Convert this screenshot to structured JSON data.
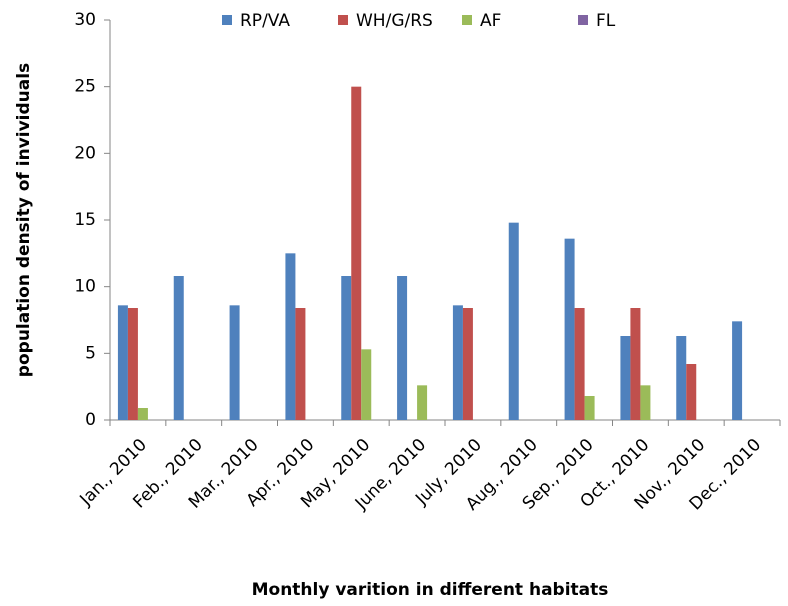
{
  "chart_data": {
    "type": "bar",
    "x_label": "Monthly varition in different habitats",
    "y_label": "population density of invividuals",
    "categories": [
      "Jan., 2010",
      "Feb., 2010",
      "Mar., 2010",
      "Apr., 2010",
      "May, 2010",
      "June, 2010",
      "July, 2010",
      "Aug., 2010",
      "Sep., 2010",
      "Oct., 2010",
      "Nov., 2010",
      "Dec., 2010"
    ],
    "series": [
      {
        "name": "RP/VA",
        "color": "#4f81bd",
        "values": [
          8.6,
          10.8,
          8.6,
          12.5,
          10.8,
          10.8,
          8.6,
          14.8,
          13.6,
          6.3,
          6.3,
          7.4
        ]
      },
      {
        "name": "WH/G/RS",
        "color": "#c0504d",
        "values": [
          8.4,
          0,
          0,
          8.4,
          25,
          0,
          8.4,
          0,
          8.4,
          8.4,
          4.2,
          0
        ]
      },
      {
        "name": "AF",
        "color": "#9bbb59",
        "values": [
          0.9,
          0,
          0,
          0,
          5.3,
          2.6,
          0,
          0,
          1.8,
          2.6,
          0,
          0
        ]
      },
      {
        "name": "FL",
        "color": "#8064a2",
        "values": [
          0,
          0,
          0,
          0,
          0,
          0,
          0,
          0,
          0,
          0,
          0,
          0
        ]
      }
    ],
    "ylim": [
      0,
      30
    ],
    "yticks": [
      0,
      5,
      10,
      15,
      20,
      25,
      30
    ],
    "legend": "top"
  }
}
